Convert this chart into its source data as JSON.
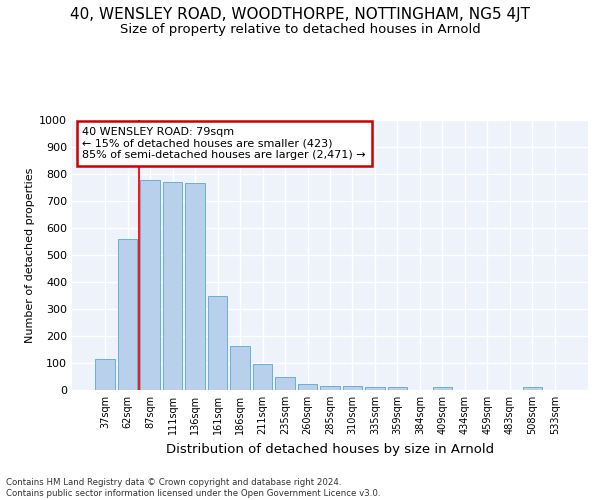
{
  "title_line1": "40, WENSLEY ROAD, WOODTHORPE, NOTTINGHAM, NG5 4JT",
  "title_line2": "Size of property relative to detached houses in Arnold",
  "xlabel": "Distribution of detached houses by size in Arnold",
  "ylabel": "Number of detached properties",
  "categories": [
    "37sqm",
    "62sqm",
    "87sqm",
    "111sqm",
    "136sqm",
    "161sqm",
    "186sqm",
    "211sqm",
    "235sqm",
    "260sqm",
    "285sqm",
    "310sqm",
    "335sqm",
    "359sqm",
    "384sqm",
    "409sqm",
    "434sqm",
    "459sqm",
    "483sqm",
    "508sqm",
    "533sqm"
  ],
  "values": [
    113,
    560,
    778,
    772,
    768,
    347,
    163,
    97,
    50,
    22,
    13,
    13,
    12,
    10,
    0,
    10,
    0,
    0,
    0,
    10,
    0
  ],
  "bar_color": "#b8d0ec",
  "bar_edge_color": "#6aaed6",
  "red_line_x": 1.5,
  "annotation_text": "40 WENSLEY ROAD: 79sqm\n← 15% of detached houses are smaller (423)\n85% of semi-detached houses are larger (2,471) →",
  "annotation_box_color": "#ffffff",
  "annotation_box_edge_color": "#cc0000",
  "ylim": [
    0,
    1000
  ],
  "yticks": [
    0,
    100,
    200,
    300,
    400,
    500,
    600,
    700,
    800,
    900,
    1000
  ],
  "footnote": "Contains HM Land Registry data © Crown copyright and database right 2024.\nContains public sector information licensed under the Open Government Licence v3.0.",
  "bg_color": "#eef2fa",
  "grid_color": "#ffffff",
  "title_fontsize": 11,
  "subtitle_fontsize": 9.5,
  "xlabel_fontsize": 9.5,
  "ylabel_fontsize": 8,
  "bar_width": 0.85
}
